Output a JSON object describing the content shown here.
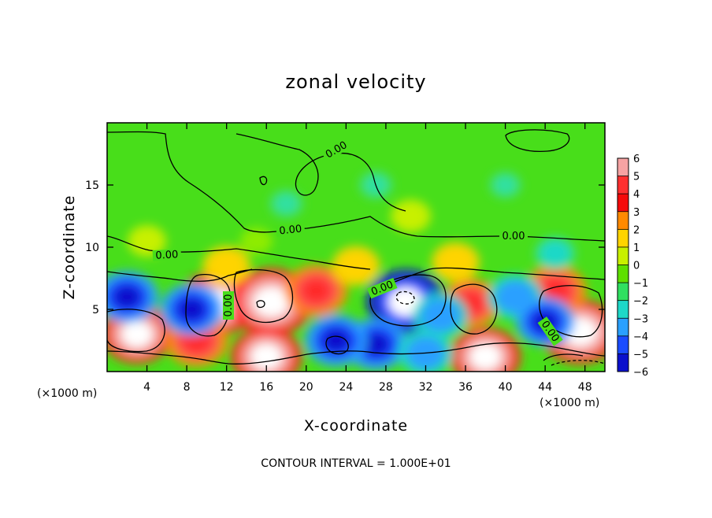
{
  "chart_data": {
    "type": "heatmap",
    "title": "zonal velocity",
    "xlabel": "X-coordinate",
    "ylabel": "Z-coordinate",
    "x_unit_left": "(×1000 m)",
    "x_unit_right": "(×1000 m)",
    "footer": "CONTOUR INTERVAL = 1.000E+01",
    "xlim": [
      0,
      50
    ],
    "ylim": [
      0,
      20
    ],
    "x_ticks": [
      4,
      8,
      12,
      16,
      20,
      24,
      28,
      32,
      36,
      40,
      44,
      48
    ],
    "y_ticks": [
      5,
      10,
      15
    ],
    "colorbar": {
      "levels": [
        6,
        5,
        4,
        3,
        2,
        1,
        0,
        -1,
        -2,
        -3,
        -4,
        -5,
        -6
      ],
      "colors": [
        "#f6a3a3",
        "#ff3030",
        "#f50a0a",
        "#ff8a00",
        "#ffd400",
        "#c8f000",
        "#5ee000",
        "#30e060",
        "#1ed8c8",
        "#2aa0ff",
        "#1a4cff",
        "#0a10cc",
        "#7a10a0"
      ]
    },
    "contour_labels": [
      "0.00",
      "0.00",
      "0.00",
      "0.00",
      "0.00",
      "0.00",
      "0.00"
    ],
    "blobs": [
      {
        "x": 11,
        "z": 5.5,
        "v": 7
      },
      {
        "x": 16.5,
        "z": 5.6,
        "v": 7.5
      },
      {
        "x": 30,
        "z": 5.6,
        "v": -7
      },
      {
        "x": 21,
        "z": 6.5,
        "v": 5
      },
      {
        "x": 3,
        "z": 3,
        "v": 6
      },
      {
        "x": 9,
        "z": 2.5,
        "v": 5
      },
      {
        "x": 16,
        "z": 1.2,
        "v": 6
      },
      {
        "x": 27,
        "z": 2.2,
        "v": -5
      },
      {
        "x": 38,
        "z": 1.2,
        "v": 6
      },
      {
        "x": 47.5,
        "z": 3.2,
        "v": 7
      },
      {
        "x": 45,
        "z": 6.5,
        "v": 5
      },
      {
        "x": 36.5,
        "z": 5.5,
        "v": 4.5
      },
      {
        "x": 2,
        "z": 6,
        "v": -5
      },
      {
        "x": 8.5,
        "z": 5,
        "v": -5
      },
      {
        "x": 23,
        "z": 2.5,
        "v": -5
      },
      {
        "x": 33.5,
        "z": 4.5,
        "v": -4
      },
      {
        "x": 41,
        "z": 6,
        "v": -4
      },
      {
        "x": 44,
        "z": 4,
        "v": -4.5
      },
      {
        "x": 32,
        "z": 1.5,
        "v": -4
      },
      {
        "x": 25,
        "z": 8.5,
        "v": 3
      },
      {
        "x": 30.5,
        "z": 12.5,
        "v": 2
      },
      {
        "x": 4,
        "z": 10.5,
        "v": 1.8
      },
      {
        "x": 12,
        "z": 8.5,
        "v": 3
      },
      {
        "x": 35,
        "z": 8.8,
        "v": 3
      },
      {
        "x": 45,
        "z": 9.5,
        "v": -2
      },
      {
        "x": 18,
        "z": 13.5,
        "v": -1.2
      },
      {
        "x": 27,
        "z": 15,
        "v": -1.2
      },
      {
        "x": 40,
        "z": 15,
        "v": -1
      },
      {
        "x": 15,
        "z": 10.5,
        "v": 1
      }
    ]
  }
}
